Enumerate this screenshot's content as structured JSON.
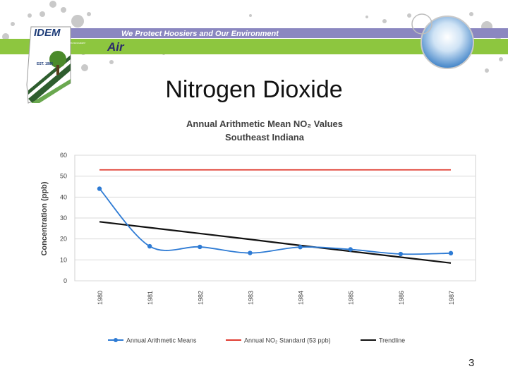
{
  "banner": {
    "logo_text": "IDEM",
    "tagline": "We Protect Hoosiers and Our Environment",
    "section": "Air",
    "logo_subtext": "INDIANA DEPARTMENT OF ENVIRONMENTAL MANAGEMENT",
    "logo_est": "EST. 1986",
    "colors": {
      "green": "#8dc63f",
      "purple": "#8b87c0",
      "navy": "#2b2a6b",
      "dark_blue": "#1d3c78"
    }
  },
  "slide": {
    "title": "Nitrogen Dioxide",
    "page_number": "3"
  },
  "chart_data": {
    "type": "line",
    "title": "Annual Arithmetic Mean NO₂ Values",
    "subtitle": "Southeast Indiana",
    "xlabel": "",
    "ylabel": "Concentration (ppb)",
    "categories": [
      "1980",
      "1981",
      "1982",
      "1983",
      "1984",
      "1985",
      "1986",
      "1987"
    ],
    "ylim": [
      0,
      60
    ],
    "yticks": [
      "0",
      "10",
      "20",
      "30",
      "40",
      "50",
      "60"
    ],
    "grid": true,
    "legend_position": "bottom",
    "series": [
      {
        "name": "Annual Arithmetic Means",
        "color": "#2e7bd4",
        "markers": true,
        "smooth": true,
        "values": [
          44,
          16.5,
          16.2,
          13.3,
          16.1,
          15,
          12.8,
          13.2
        ]
      },
      {
        "name": "Annual NO₂ Standard (53 ppb)",
        "color": "#e03c31",
        "markers": false,
        "values": [
          53,
          53,
          53,
          53,
          53,
          53,
          53,
          53
        ]
      },
      {
        "name": "Trendline",
        "color": "#111111",
        "markers": false,
        "values": [
          28.2,
          25.4,
          22.6,
          19.8,
          16.9,
          14.1,
          11.3,
          8.5
        ]
      }
    ]
  }
}
